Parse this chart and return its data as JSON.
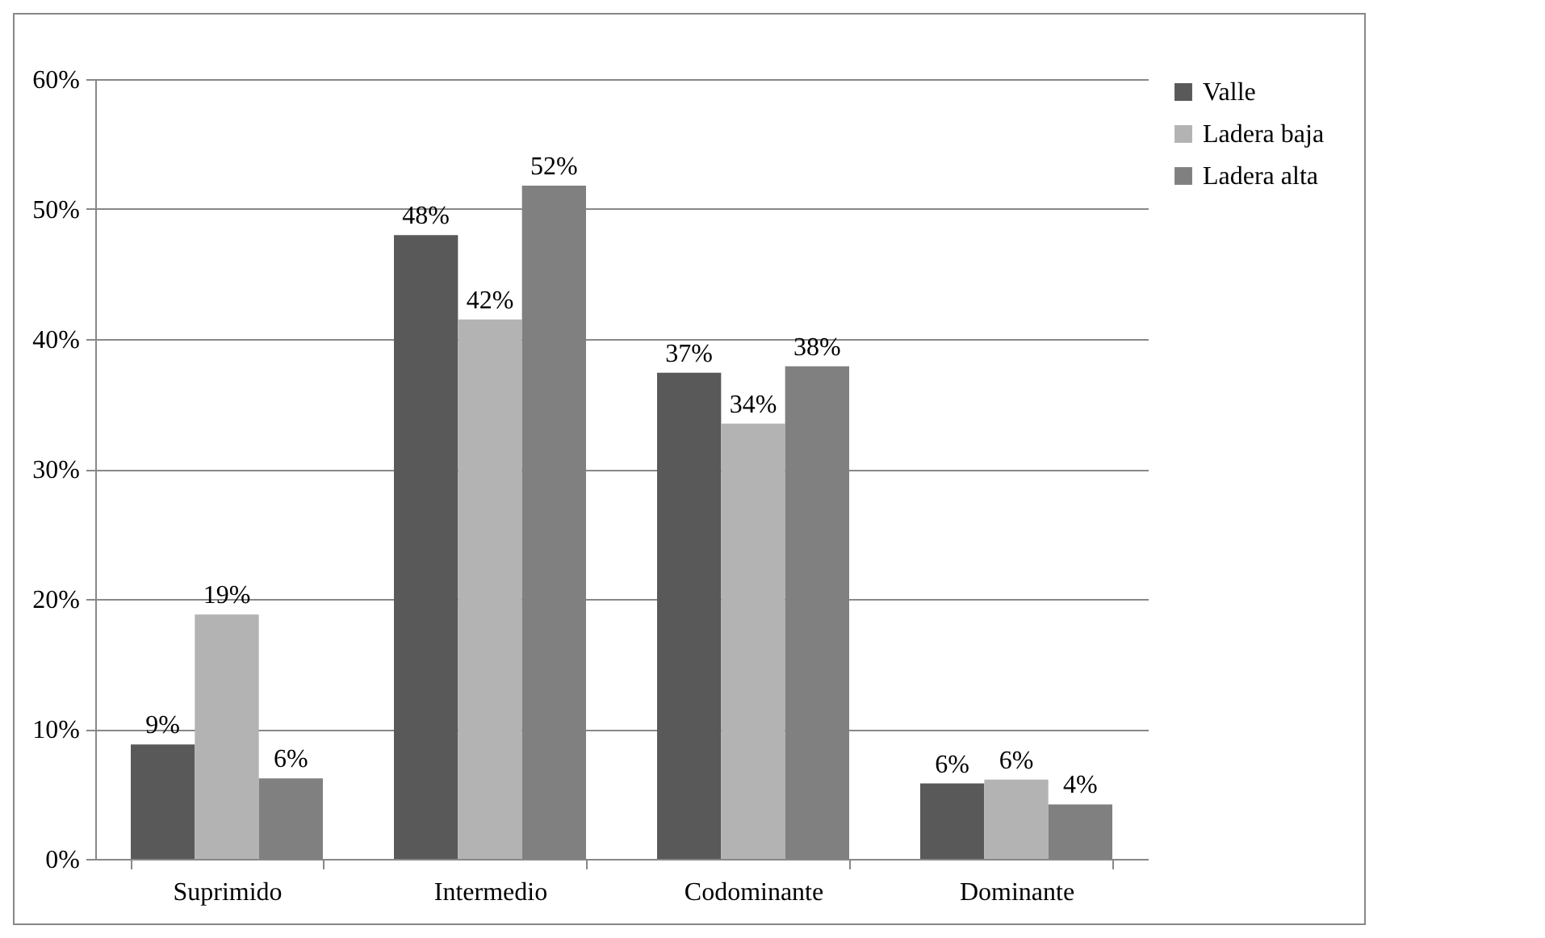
{
  "chart_data": {
    "type": "bar",
    "categories": [
      "Suprimido",
      "Intermedio",
      "Codominante",
      "Dominante"
    ],
    "series": [
      {
        "name": "Valle",
        "color": "#595959",
        "values": [
          8.8,
          48,
          37.4,
          5.8
        ],
        "value_labels": [
          "9%",
          "48%",
          "37%",
          "6%"
        ]
      },
      {
        "name": "Ladera baja",
        "color": "#b3b3b3",
        "values": [
          18.8,
          41.5,
          33.5,
          6.1
        ],
        "value_labels": [
          "19%",
          "42%",
          "34%",
          "6%"
        ]
      },
      {
        "name": "Ladera alta",
        "color": "#808080",
        "values": [
          6.2,
          51.8,
          37.9,
          4.2
        ],
        "value_labels": [
          "6%",
          "52%",
          "38%",
          "4%"
        ]
      }
    ],
    "ylim": [
      0,
      60
    ],
    "yticks": [
      {
        "value": 0,
        "label": "0%"
      },
      {
        "value": 10,
        "label": "10%"
      },
      {
        "value": 20,
        "label": "20%"
      },
      {
        "value": 30,
        "label": "30%"
      },
      {
        "value": 40,
        "label": "40%"
      },
      {
        "value": 50,
        "label": "50%"
      },
      {
        "value": 60,
        "label": "60%"
      }
    ],
    "grid": "y",
    "legend": "right"
  }
}
